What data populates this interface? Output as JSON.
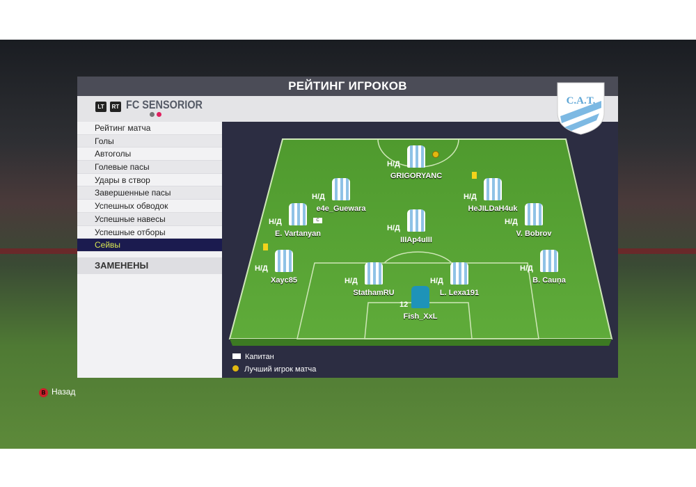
{
  "title": "РЕЙТИНГ ИГРОКОВ",
  "team": {
    "name": "FC SENSORIOR",
    "lt": "LT",
    "rt": "RT",
    "logo_text": "C.A.T."
  },
  "menu": [
    "Рейтинг матча",
    "Голы",
    "Автоголы",
    "Голевые пасы",
    "Удары в створ",
    "Завершенные пасы",
    "Успешных обводок",
    "Успешные навесы",
    "Успешные отборы",
    "Сейвы"
  ],
  "selected": "Сейвы",
  "subs_label": "ЗАМЕНЕНЫ",
  "players": [
    {
      "name": "GRIGORYANC",
      "rating": "Н/Д",
      "best": true
    },
    {
      "name": "e4e_Guewara",
      "rating": "Н/Д"
    },
    {
      "name": "HeJILDaH4uk",
      "rating": "Н/Д",
      "yellow_card": true
    },
    {
      "name": "E. Vartanyan",
      "rating": "Н/Д",
      "captain": true
    },
    {
      "name": "IIIAp4uIII",
      "rating": "Н/Д"
    },
    {
      "name": "V. Bobrov",
      "rating": "Н/Д"
    },
    {
      "name": "Xayc85",
      "rating": "Н/Д",
      "yellow_card": true
    },
    {
      "name": "StathamRU",
      "rating": "Н/Д"
    },
    {
      "name": "L. Lexa191",
      "rating": "Н/Д"
    },
    {
      "name": "B. Cauņa",
      "rating": "Н/Д"
    },
    {
      "name": "Fish_XxL",
      "rating": "12",
      "goalkeeper": true
    }
  ],
  "legend": {
    "captain": "Капитан",
    "captain_icon": "C",
    "best": "Лучший игрок матча"
  },
  "back": {
    "button": "B",
    "label": "Назад"
  },
  "colors": {
    "selected_bg": "#1b1b4f",
    "selected_text": "#d7e552",
    "pitch": "#5aa236",
    "field_bg": "#2c2d42"
  }
}
